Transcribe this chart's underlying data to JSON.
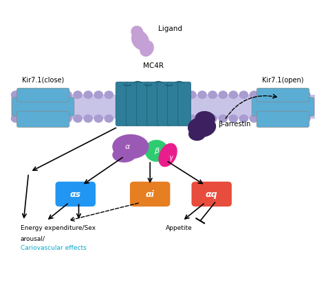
{
  "background_color": "#ffffff",
  "labels": {
    "ligand": "Ligand",
    "mc4r": "MC4R",
    "kir_close": "Kir7.1(close)",
    "kir_open": "Kir7.1(open)",
    "beta_arrestin": "β-arrestin",
    "alpha_s": "αs",
    "alpha_i": "αi",
    "alpha_q": "αq",
    "alpha_label": "α",
    "beta_label": "β",
    "gamma_label": "γ",
    "energy1": "Energy expenditure/Sex",
    "energy2": "arousal/",
    "cardio": "Cariovascular effects",
    "appetite": "Appetite"
  },
  "colors": {
    "teal_receptor": "#2e7d99",
    "teal_dark": "#1a5f75",
    "blue_kir": "#5badd4",
    "purple_ligand": "#c4a0d4",
    "purple_alpha": "#9b59b6",
    "green_beta": "#2ecc71",
    "pink_gamma": "#e91e8c",
    "dark_purple_arrestin": "#3d2060",
    "blue_as": "#2196f3",
    "orange_ai": "#e67e22",
    "red_aq": "#e74c3c",
    "cyan_text": "#00aacc",
    "gray_membrane": "#c8c4e8",
    "membrane_head": "#a89cd0"
  }
}
